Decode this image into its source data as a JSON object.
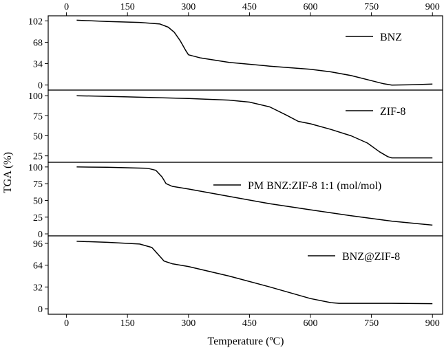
{
  "chart_data": {
    "type": "line",
    "title": "",
    "xlabel": "Temperature (ºC)",
    "ylabel": "TGA (%)",
    "xlim": [
      -45,
      925
    ],
    "x_ticks": [
      0,
      150,
      300,
      450,
      600,
      750,
      900
    ],
    "x_tick_labels_top": [
      "0",
      "150",
      "300",
      "450",
      "600",
      "750",
      "900"
    ],
    "x_tick_labels_bottom": [
      "0",
      "150",
      "300",
      "450",
      "600",
      "750",
      "900"
    ],
    "grid": false,
    "legend_placement": "top-right",
    "panels": [
      {
        "series_name": "BNZ",
        "ylim": [
          -8,
          110
        ],
        "y_ticks": [
          0,
          34,
          68,
          102
        ],
        "y_tick_labels": [
          "0",
          "34",
          "68",
          "102"
        ],
        "x": [
          25,
          100,
          180,
          230,
          250,
          265,
          280,
          293,
          300,
          330,
          400,
          500,
          600,
          650,
          700,
          750,
          780,
          800,
          850,
          900
        ],
        "y": [
          103,
          101,
          99.5,
          97,
          92,
          84,
          70,
          55,
          48,
          43,
          36,
          30,
          25,
          21,
          15,
          7,
          2,
          0,
          0.5,
          1.5
        ]
      },
      {
        "series_name": "ZIF-8",
        "ylim": [
          17,
          107
        ],
        "y_ticks": [
          25,
          50,
          75,
          100
        ],
        "y_tick_labels": [
          "25",
          "50",
          "75",
          "100"
        ],
        "x": [
          25,
          150,
          300,
          400,
          450,
          500,
          540,
          570,
          600,
          650,
          700,
          740,
          770,
          790,
          800,
          850,
          900
        ],
        "y": [
          100,
          98.5,
          96.5,
          94.5,
          92,
          86,
          76,
          68,
          65,
          58,
          50,
          41,
          30,
          24,
          22.5,
          22.5,
          22.5
        ]
      },
      {
        "series_name": "PM BNZ:ZIF-8 1:1 (mol/mol)",
        "ylim": [
          -3,
          107
        ],
        "y_ticks": [
          0,
          25,
          50,
          75,
          100
        ],
        "y_tick_labels": [
          "0",
          "25",
          "50",
          "75",
          "100"
        ],
        "x": [
          25,
          100,
          200,
          220,
          235,
          245,
          260,
          300,
          400,
          500,
          600,
          700,
          800,
          900
        ],
        "y": [
          100,
          99.5,
          98,
          95,
          85,
          75,
          71,
          67,
          56,
          45,
          36,
          27,
          19,
          13
        ]
      },
      {
        "series_name": "BNZ@ZIF-8",
        "ylim": [
          -8,
          107
        ],
        "y_ticks": [
          0,
          32,
          64,
          96
        ],
        "y_tick_labels": [
          "0",
          "32",
          "64",
          "96"
        ],
        "x": [
          25,
          100,
          180,
          210,
          225,
          240,
          260,
          300,
          400,
          500,
          600,
          650,
          670,
          700,
          800,
          900
        ],
        "y": [
          99,
          97.5,
          95,
          90,
          80,
          70,
          66,
          62,
          48,
          32,
          15,
          9,
          8,
          8,
          8,
          7.5
        ]
      }
    ]
  }
}
